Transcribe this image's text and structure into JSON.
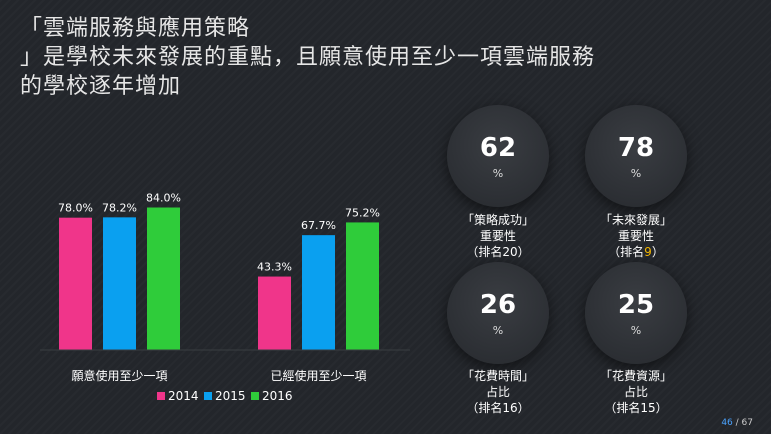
{
  "title_lines": [
    "「雲端服務與應用策略",
    "」是學校未來發展的重點，且願意使用至少一項雲端服務",
    "的學校逐年增加"
  ],
  "chart_data": {
    "type": "bar",
    "categories": [
      "願意使用至少一項",
      "已經使用至少一項"
    ],
    "series": [
      {
        "name": "2014",
        "values": [
          78.0,
          43.3
        ],
        "labels": [
          "78.0%",
          "43.3%"
        ],
        "color": "#f0358a"
      },
      {
        "name": "2015",
        "values": [
          78.2,
          67.7
        ],
        "labels": [
          "78.2%",
          "67.7%"
        ],
        "color": "#0aa0f0"
      },
      {
        "name": "2016",
        "values": [
          84.0,
          75.2
        ],
        "labels": [
          "84.0%",
          "75.2%"
        ],
        "color": "#2fcc3a"
      }
    ],
    "ylim": [
      0,
      100
    ],
    "legend": "bottom",
    "grid": false
  },
  "stats": [
    {
      "value": "62",
      "unit": "%",
      "lines": [
        "「策略成功」",
        "重要性"
      ],
      "rank_prefix": "（排名",
      "rank": "20",
      "rank_suffix": "）",
      "rank_highlight": false
    },
    {
      "value": "78",
      "unit": "%",
      "lines": [
        "「未來發展」",
        "重要性"
      ],
      "rank_prefix": "（排名",
      "rank": "9",
      "rank_suffix": "）",
      "rank_highlight": true,
      "highlight_color": "#f5b800"
    },
    {
      "value": "26",
      "unit": "%",
      "lines": [
        "「花費時間」",
        "占比"
      ],
      "rank_prefix": "（排名",
      "rank": "16",
      "rank_suffix": "）",
      "rank_highlight": false
    },
    {
      "value": "25",
      "unit": "%",
      "lines": [
        "「花費資源」",
        "占比"
      ],
      "rank_prefix": "（排名",
      "rank": "15",
      "rank_suffix": "）",
      "rank_highlight": false
    }
  ],
  "page": {
    "current": "46",
    "separator": " / ",
    "total": "67"
  }
}
